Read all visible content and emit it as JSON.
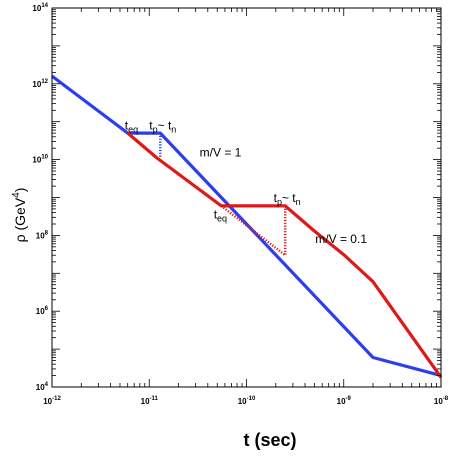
{
  "chart_data": {
    "type": "line",
    "title": "",
    "xlabel": "t (sec)",
    "ylabel": "ρ  (GeV",
    "ylabel_exp": "4",
    "ylabel_close": ")",
    "xscale": "log",
    "yscale": "log",
    "xlim": [
      1e-12,
      1e-08
    ],
    "ylim": [
      10000.0,
      100000000000000.0
    ],
    "grid": false,
    "x_ticks": [
      {
        "base": "10",
        "exp": "-12",
        "value": 1e-12
      },
      {
        "base": "10",
        "exp": "-11",
        "value": 1e-11
      },
      {
        "base": "10",
        "exp": "-10",
        "value": 1e-10
      },
      {
        "base": "10",
        "exp": "-9",
        "value": 1e-09
      },
      {
        "base": "10",
        "exp": "-8",
        "value": 1e-08
      }
    ],
    "y_ticks": [
      {
        "base": "10",
        "exp": "4",
        "value": 10000.0
      },
      {
        "base": "10",
        "exp": "6",
        "value": 1000000.0
      },
      {
        "base": "10",
        "exp": "8",
        "value": 100000000.0
      },
      {
        "base": "10",
        "exp": "10",
        "value": 10000000000.0
      },
      {
        "base": "10",
        "exp": "12",
        "value": 1000000000000.0
      },
      {
        "base": "10",
        "exp": "14",
        "value": 100000000000000.0
      }
    ],
    "series": [
      {
        "color": "#2c3ff0",
        "style": "solid",
        "x": [
          1e-12,
          6e-12,
          1.3e-11,
          2e-09,
          1e-08
        ],
        "y": [
          1600000000000.0,
          50000000000.0,
          50000000000.0,
          60000.0,
          20000.0
        ]
      },
      {
        "color": "#e01818",
        "style": "solid",
        "x": [
          6e-12,
          1.2e-11,
          5.5e-11,
          2.5e-10,
          5e-10,
          1e-09,
          2e-09,
          1e-08
        ],
        "y": [
          50000000000.0,
          11000000000.0,
          600000000.0,
          600000000.0,
          130000000.0,
          31000000.0,
          6000000.0,
          18000.0
        ]
      },
      {
        "color": "#2c3ff0",
        "style": "dotted",
        "x": [
          1.3e-11,
          1.3e-11
        ],
        "y": [
          50000000000.0,
          11000000000.0
        ]
      },
      {
        "color": "#e01818",
        "style": "dotted",
        "x": [
          5.5e-11,
          2.5e-10,
          2.5e-10
        ],
        "y": [
          600000000.0,
          30000000.0,
          600000000.0
        ]
      }
    ],
    "annotations": [
      {
        "id": "teq-blue",
        "base": "t",
        "sub": "eq",
        "x": 5.6e-12,
        "y": 63000000000.0
      },
      {
        "id": "tptn-blue",
        "base1": "t",
        "sub1": "p",
        "mid": "~ ",
        "base2": "t",
        "sub2": "n",
        "x": 1e-11,
        "y": 63000000000.0
      },
      {
        "id": "mv1",
        "text": "m/V = 1",
        "x": 3.3e-11,
        "y": 12000000000.0
      },
      {
        "id": "teq-red",
        "base": "t",
        "sub": "eq",
        "x": 4.6e-11,
        "y": 280000000.0
      },
      {
        "id": "tptn-red",
        "base1": "t",
        "sub1": "p",
        "mid": "~ ",
        "base2": "t",
        "sub2": "n",
        "x": 1.9e-10,
        "y": 760000000.0
      },
      {
        "id": "mv01",
        "text": "m/V = 0.1",
        "x": 5.1e-10,
        "y": 63000000.0
      }
    ]
  }
}
